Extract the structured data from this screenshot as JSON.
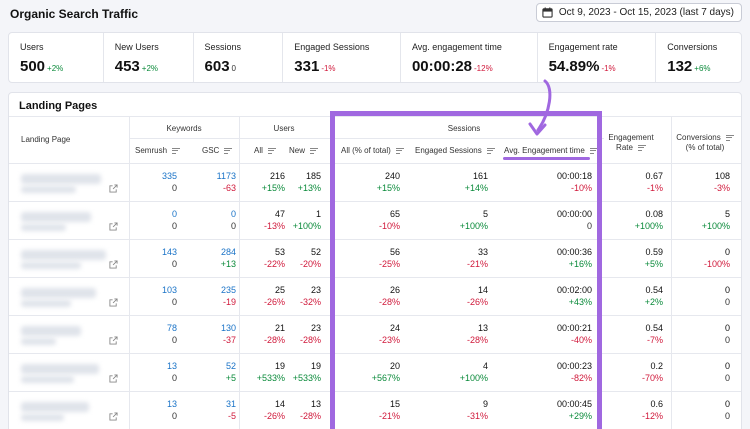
{
  "header": {
    "title": "Organic Search Traffic",
    "date_range": "Oct 9, 2023 - Oct 15, 2023 (last 7 days)"
  },
  "metrics": [
    {
      "label": "Users",
      "value": "500",
      "delta": "+2%",
      "tone": "pos"
    },
    {
      "label": "New Users",
      "value": "453",
      "delta": "+2%",
      "tone": "pos"
    },
    {
      "label": "Sessions",
      "value": "603",
      "delta": "0",
      "tone": "neu"
    },
    {
      "label": "Engaged Sessions",
      "value": "331",
      "delta": "-1%",
      "tone": "neg"
    },
    {
      "label": "Avg. engagement time",
      "value": "00:00:28",
      "delta": "-12%",
      "tone": "neg"
    },
    {
      "label": "Engagement rate",
      "value": "54.89%",
      "delta": "-1%",
      "tone": "neg"
    },
    {
      "label": "Conversions",
      "value": "132",
      "delta": "+6%",
      "tone": "pos"
    }
  ],
  "table": {
    "title": "Landing Pages",
    "groups": {
      "keywords": "Keywords",
      "users": "Users",
      "sessions": "Sessions"
    },
    "columns": {
      "landing_page": "Landing Page",
      "semrush": "Semrush",
      "gsc": "GSC",
      "all": "All",
      "new": "New",
      "all_pct": "All (% of total)",
      "engaged": "Engaged Sessions",
      "avg_time": "Avg. Engagement time",
      "eng_rate_1": "Engagement",
      "eng_rate_2": "Rate",
      "conv_1": "Conversions",
      "conv_2": "(% of total)"
    },
    "rows": [
      {
        "semrush": "335",
        "semrush_d": "0",
        "gsc": "1173",
        "gsc_d": "-63",
        "all": "216",
        "all_d": "+15%",
        "new": "185",
        "new_d": "+13%",
        "sess": "240",
        "sess_d": "+15%",
        "eng": "161",
        "eng_d": "+14%",
        "time": "00:00:18",
        "time_d": "-10%",
        "rate": "0.67",
        "rate_d": "-1%",
        "conv": "108",
        "conv_d": "-3%"
      },
      {
        "semrush": "0",
        "semrush_d": "0",
        "gsc": "0",
        "gsc_d": "0",
        "all": "47",
        "all_d": "-13%",
        "new": "1",
        "new_d": "+100%",
        "sess": "65",
        "sess_d": "-10%",
        "eng": "5",
        "eng_d": "+100%",
        "time": "00:00:00",
        "time_d": "0",
        "rate": "0.08",
        "rate_d": "+100%",
        "conv": "5",
        "conv_d": "+100%"
      },
      {
        "semrush": "143",
        "semrush_d": "0",
        "gsc": "284",
        "gsc_d": "+13",
        "all": "53",
        "all_d": "-22%",
        "new": "52",
        "new_d": "-20%",
        "sess": "56",
        "sess_d": "-25%",
        "eng": "33",
        "eng_d": "-21%",
        "time": "00:00:36",
        "time_d": "+16%",
        "rate": "0.59",
        "rate_d": "+5%",
        "conv": "0",
        "conv_d": "-100%"
      },
      {
        "semrush": "103",
        "semrush_d": "0",
        "gsc": "235",
        "gsc_d": "-19",
        "all": "25",
        "all_d": "-26%",
        "new": "23",
        "new_d": "-32%",
        "sess": "26",
        "sess_d": "-28%",
        "eng": "14",
        "eng_d": "-26%",
        "time": "00:02:00",
        "time_d": "+43%",
        "rate": "0.54",
        "rate_d": "+2%",
        "conv": "0",
        "conv_d": "0"
      },
      {
        "semrush": "78",
        "semrush_d": "0",
        "gsc": "130",
        "gsc_d": "-37",
        "all": "21",
        "all_d": "-28%",
        "new": "23",
        "new_d": "-28%",
        "sess": "24",
        "sess_d": "-23%",
        "eng": "13",
        "eng_d": "-28%",
        "time": "00:00:21",
        "time_d": "-40%",
        "rate": "0.54",
        "rate_d": "-7%",
        "conv": "0",
        "conv_d": "0"
      },
      {
        "semrush": "13",
        "semrush_d": "0",
        "gsc": "52",
        "gsc_d": "+5",
        "all": "19",
        "all_d": "+533%",
        "new": "19",
        "new_d": "+533%",
        "sess": "20",
        "sess_d": "+567%",
        "eng": "4",
        "eng_d": "+100%",
        "time": "00:00:23",
        "time_d": "-82%",
        "rate": "0.2",
        "rate_d": "-70%",
        "conv": "0",
        "conv_d": "0"
      },
      {
        "semrush": "13",
        "semrush_d": "0",
        "gsc": "31",
        "gsc_d": "-5",
        "all": "14",
        "all_d": "-26%",
        "new": "13",
        "new_d": "-28%",
        "sess": "15",
        "sess_d": "-21%",
        "eng": "9",
        "eng_d": "-31%",
        "time": "00:00:45",
        "time_d": "+29%",
        "rate": "0.6",
        "rate_d": "-12%",
        "conv": "0",
        "conv_d": "0"
      }
    ]
  },
  "colors": {
    "highlight": "#a068e0",
    "positive": "#0a8a3a",
    "negative": "#d0193b",
    "link": "#1a73c7"
  }
}
